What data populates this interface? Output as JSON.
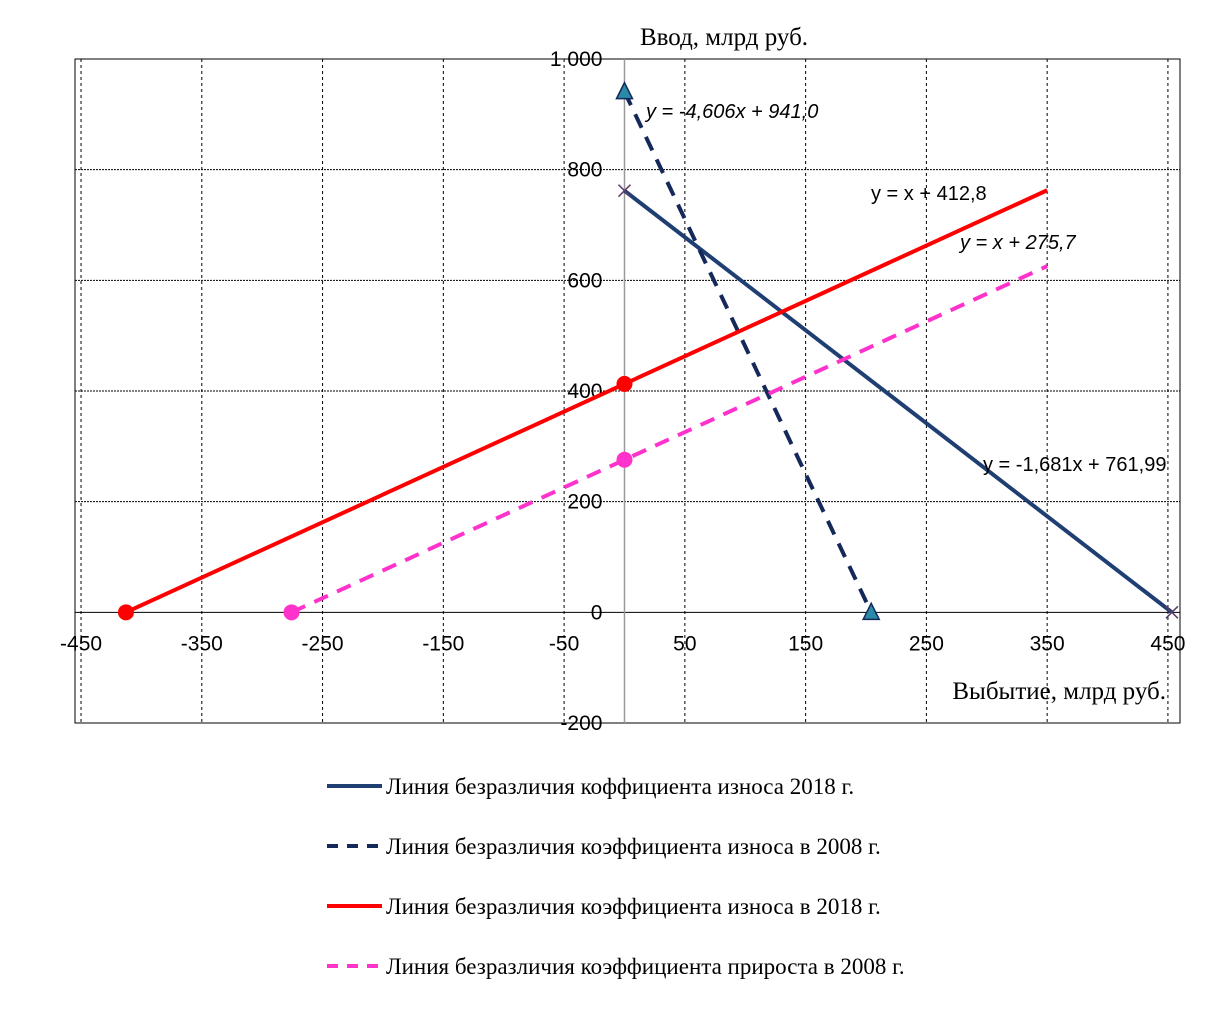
{
  "chart_data": {
    "type": "line",
    "xlabel": "Выбытие, млрд руб.",
    "ylabel": "Ввод, млрд руб.",
    "xlim": [
      -455,
      460
    ],
    "ylim": [
      -200,
      1000
    ],
    "x_ticks": [
      -450,
      -350,
      -250,
      -150,
      -50,
      50,
      150,
      250,
      350,
      450
    ],
    "y_ticks": [
      {
        "value": 1000,
        "label": "1 000"
      },
      {
        "value": 800,
        "label": "800"
      },
      {
        "value": 600,
        "label": "600"
      },
      {
        "value": 400,
        "label": "400"
      },
      {
        "value": 200,
        "label": "200"
      },
      {
        "value": 0,
        "label": "0"
      },
      {
        "value": -200,
        "label": "-200"
      }
    ],
    "grid": true,
    "legend_position": "bottom",
    "series": [
      {
        "name": "Линия безразличия коффициента износа 2018 г.",
        "color": "#1f3f73",
        "dash": "solid",
        "marker": "x",
        "points": [
          [
            0,
            761.99
          ],
          [
            453.3,
            0
          ]
        ],
        "equation": "y = -1,681x  + 761,99",
        "equation_italic": false
      },
      {
        "name": "Линия безразличия коэффициента износа в 2008 г.",
        "color": "#14285a",
        "dash": "dashed",
        "marker": "triangle",
        "points": [
          [
            0,
            941.0
          ],
          [
            204.3,
            0
          ]
        ],
        "equation": "y = -4,606x  + 941,0",
        "equation_italic": true
      },
      {
        "name": "Линия безразличия коэффициента износа в 2018 г.",
        "color": "#ff0000",
        "dash": "solid",
        "marker": "circle",
        "points": [
          [
            -412.8,
            0
          ],
          [
            0,
            412.8
          ],
          [
            350,
            762.8
          ]
        ],
        "equation": "y = x + 412,8",
        "equation_italic": false
      },
      {
        "name": "Линия безразличия коэффициента прироста в 2008 г.",
        "color": "#ff33cc",
        "dash": "dashed",
        "marker": "circle",
        "points": [
          [
            -275.7,
            0
          ],
          [
            0,
            275.7
          ],
          [
            350,
            625.7
          ]
        ],
        "equation": "y = x + 275,7",
        "equation_italic": true
      }
    ]
  }
}
